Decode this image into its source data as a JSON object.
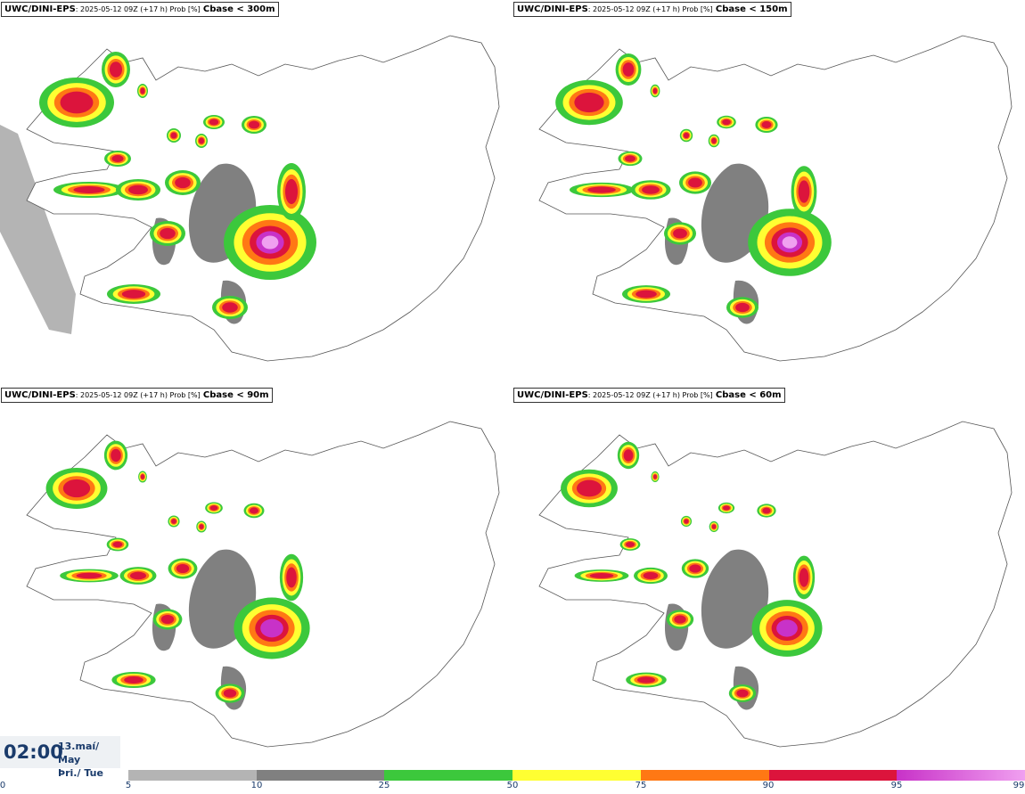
{
  "panels": [
    {
      "model": "UWC/DINI-EPS",
      "meta": ": 2025-05-12 09Z (+17 h) Prob [%]",
      "threshold": "Cbase < 300m"
    },
    {
      "model": "UWC/DINI-EPS",
      "meta": ": 2025-05-12 09Z (+17 h) Prob [%]",
      "threshold": "Cbase < 150m"
    },
    {
      "model": "UWC/DINI-EPS",
      "meta": ": 2025-05-12 09Z (+17 h) Prob [%]",
      "threshold": "Cbase < 90m"
    },
    {
      "model": "UWC/DINI-EPS",
      "meta": ": 2025-05-12 09Z (+17 h) Prob [%]",
      "threshold": "Cbase < 60m"
    }
  ],
  "valid_time": {
    "time": "02:00",
    "date_line1": "13.maí/ May",
    "date_line2": "Þri./ Tue"
  },
  "legend": {
    "ticks": [
      "0",
      "5",
      "10",
      "25",
      "50",
      "75",
      "90",
      "95",
      "99"
    ],
    "colors": [
      "#ffffff",
      "#b4b4b4",
      "#808080",
      "#3cc83c",
      "#ffff32",
      "#ff7814",
      "#dc143c",
      "#c832c8",
      "#f0a0f0"
    ]
  }
}
